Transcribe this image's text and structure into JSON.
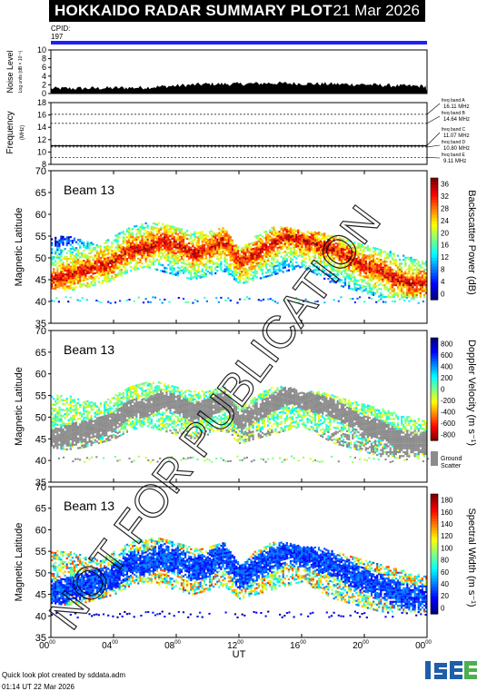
{
  "header": {
    "title": "HOKKAIDO RADAR SUMMARY PLOT",
    "date": "21 Mar 2026",
    "cpid_label": "CPID:",
    "cpid_value": "197"
  },
  "footer": {
    "line1": "Quick look plot created by sddata.adm",
    "line2": "01:14 UT 22 Mar 2026"
  },
  "logo_text": "ISEE",
  "watermark": "NOT FOR PUBLICATION",
  "colors": {
    "title_bg": "#000000",
    "accent_line": "#1a20ff",
    "ground_scatter": "#8c8c8c",
    "logo_blue": "#1e5fa8",
    "logo_green": "#4caf50"
  },
  "chart_data": [
    {
      "type": "area",
      "id": "noise",
      "ylabel": "Noise Level",
      "ylabel_sub": "Log units (dB × 10⁻¹)",
      "ylim": [
        0,
        10
      ],
      "yticks": [
        "0",
        "2",
        "4",
        "6",
        "8",
        "10"
      ],
      "x": [
        0,
        2,
        4,
        6,
        8,
        10,
        12,
        14,
        16,
        18,
        20,
        22,
        24
      ],
      "values": [
        1.0,
        1.0,
        1.1,
        1.2,
        1.6,
        2.0,
        2.0,
        2.2,
        2.1,
        2.0,
        1.9,
        1.6,
        1.5
      ]
    },
    {
      "type": "line",
      "id": "frequency",
      "ylabel": "Frequency",
      "ylabel_sub": "(MHz)",
      "ylim": [
        8,
        18
      ],
      "yticks": [
        "8",
        "10",
        "12",
        "14",
        "16",
        "18"
      ],
      "bands": [
        {
          "name": "freq band A",
          "value": "16.11 MHz",
          "mhz": 16.11
        },
        {
          "name": "freq band B",
          "value": "14.64 MHz",
          "mhz": 14.64
        },
        {
          "name": "freq band C",
          "value": "11.07 MHz",
          "mhz": 11.07
        },
        {
          "name": "freq band D",
          "value": "10.80 MHz",
          "mhz": 10.8
        },
        {
          "name": "freq band E",
          "value": "9.11 MHz",
          "mhz": 9.11
        }
      ],
      "operating_mhz": 11.0
    },
    {
      "type": "heatmap",
      "id": "power",
      "beam": "Beam 13",
      "ylabel": "Magnetic Latitude",
      "ylim": [
        35,
        70
      ],
      "yticks": [
        "35",
        "40",
        "45",
        "50",
        "55",
        "60",
        "65",
        "70"
      ],
      "colorbar_label": "Backscatter Power (dB)",
      "colorbar_ticks": [
        "0",
        "4",
        "8",
        "12",
        "16",
        "20",
        "24",
        "28",
        "32",
        "36"
      ],
      "colorbar_range": [
        0,
        36
      ],
      "ground_scatter": false
    },
    {
      "type": "heatmap",
      "id": "velocity",
      "beam": "Beam 13",
      "ylabel": "Magnetic Latitude",
      "ylim": [
        35,
        70
      ],
      "yticks": [
        "35",
        "40",
        "45",
        "50",
        "55",
        "60",
        "65",
        "70"
      ],
      "colorbar_label": "Doppler Velocity (m s⁻¹)",
      "colorbar_ticks": [
        "800",
        "600",
        "400",
        "200",
        "0",
        "-200",
        "-400",
        "-600",
        "-800"
      ],
      "colorbar_range": [
        -800,
        800
      ],
      "ground_scatter": true,
      "ground_scatter_label_1": "Ground",
      "ground_scatter_label_2": "Scatter"
    },
    {
      "type": "heatmap",
      "id": "width",
      "beam": "Beam 13",
      "ylabel": "Magnetic Latitude",
      "ylim": [
        35,
        70
      ],
      "yticks": [
        "35",
        "40",
        "45",
        "50",
        "55",
        "60",
        "65",
        "70"
      ],
      "colorbar_label": "Spectral Width (m s⁻¹)",
      "colorbar_ticks": [
        "0",
        "20",
        "40",
        "60",
        "80",
        "100",
        "120",
        "140",
        "160",
        "180"
      ],
      "colorbar_range": [
        0,
        180
      ],
      "ground_scatter": false
    }
  ],
  "x_axis": {
    "label": "UT",
    "ticks": [
      "00",
      "04",
      "08",
      "12",
      "16",
      "20",
      "00"
    ],
    "tick_superscript": "00",
    "range_hours": [
      0,
      24
    ]
  },
  "echo_band": {
    "hours": [
      0,
      1,
      2,
      3,
      4,
      5,
      6,
      7,
      8,
      9,
      10,
      11,
      12,
      13,
      14,
      15,
      16,
      17,
      18,
      19,
      20,
      21,
      22,
      23,
      24
    ],
    "lat_low": [
      43,
      42.5,
      43,
      44,
      45,
      47,
      48,
      47,
      46,
      45,
      46,
      47,
      44,
      45,
      46,
      47,
      48,
      46,
      44,
      43,
      42,
      41,
      41,
      41,
      41
    ],
    "lat_high": [
      55,
      55,
      54,
      53,
      55,
      57,
      58,
      58,
      57,
      56,
      56,
      57,
      52,
      55,
      57,
      57,
      56,
      56,
      55,
      54,
      53,
      52,
      51,
      50,
      49
    ],
    "ridge": [
      45,
      46,
      47,
      48,
      49,
      52,
      52,
      54,
      53,
      51,
      52,
      54,
      49,
      51,
      53,
      55,
      54,
      53,
      52,
      50,
      48,
      47,
      45,
      44,
      44
    ]
  }
}
